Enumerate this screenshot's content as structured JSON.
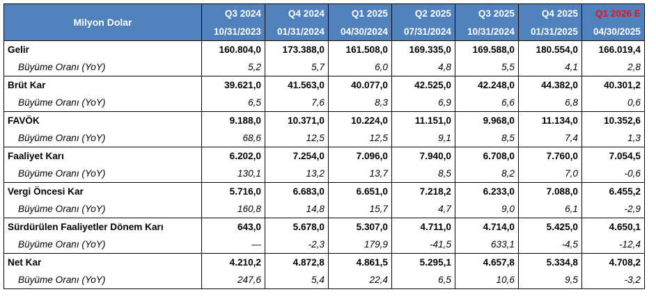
{
  "header": {
    "label": "Milyon Dolar",
    "quarters": [
      {
        "q": "Q3 2024",
        "date": "10/31/2023",
        "estimate": false
      },
      {
        "q": "Q4 2024",
        "date": "01/31/2024",
        "estimate": false
      },
      {
        "q": "Q1 2025",
        "date": "04/30/2024",
        "estimate": false
      },
      {
        "q": "Q2 2025",
        "date": "07/31/2024",
        "estimate": false
      },
      {
        "q": "Q3 2025",
        "date": "10/31/2024",
        "estimate": false
      },
      {
        "q": "Q4 2025",
        "date": "01/31/2025",
        "estimate": false
      },
      {
        "q": "Q1 2026 E",
        "date": "04/30/2025",
        "estimate": true
      }
    ]
  },
  "colors": {
    "header_bg": "#4f81bd",
    "estimate_text": "#e8121c"
  },
  "rows": [
    {
      "label": "Gelir",
      "values": [
        "160.804,0",
        "173.388,0",
        "161.508,0",
        "169.335,0",
        "169.588,0",
        "180.554,0",
        "166.019,4"
      ],
      "growth_label": "Büyüme Oranı (YoY)",
      "growth": [
        "5,2",
        "5,7",
        "6,0",
        "4,8",
        "5,5",
        "4,1",
        "2,8"
      ]
    },
    {
      "label": "Brüt Kar",
      "values": [
        "39.621,0",
        "41.563,0",
        "40.077,0",
        "42.525,0",
        "42.248,0",
        "44.382,0",
        "40.301,2"
      ],
      "growth_label": "Büyüme Oranı (YoY)",
      "growth": [
        "6,5",
        "7,6",
        "8,3",
        "6,9",
        "6,6",
        "6,8",
        "0,6"
      ]
    },
    {
      "label": "FAVÖK",
      "values": [
        "9.188,0",
        "10.371,0",
        "10.224,0",
        "11.151,0",
        "9.968,0",
        "11.134,0",
        "10.352,6"
      ],
      "growth_label": "Büyüme Oranı (YoY)",
      "growth": [
        "68,6",
        "12,5",
        "12,5",
        "9,1",
        "8,5",
        "7,4",
        "1,3"
      ]
    },
    {
      "label": "Faaliyet Karı",
      "values": [
        "6.202,0",
        "7.254,0",
        "7.096,0",
        "7.940,0",
        "6.708,0",
        "7.760,0",
        "7.054,5"
      ],
      "growth_label": "Büyüme Oranı (YoY)",
      "growth": [
        "130,1",
        "13,2",
        "13,7",
        "8,5",
        "8,2",
        "7,0",
        "-0,6"
      ]
    },
    {
      "label": "Vergi Öncesi Kar",
      "values": [
        "5.716,0",
        "6.683,0",
        "6.651,0",
        "7.218,2",
        "6.233,0",
        "7.088,0",
        "6.455,2"
      ],
      "growth_label": "Büyüme Oranı (YoY)",
      "growth": [
        "160,8",
        "14,8",
        "15,7",
        "4,7",
        "9,0",
        "6,1",
        "-2,9"
      ]
    },
    {
      "label": "Sürdürülen Faaliyetler Dönem Karı",
      "values": [
        "643,0",
        "5.678,0",
        "5.307,0",
        "4.711,0",
        "4.714,0",
        "5.425,0",
        "4.650,1"
      ],
      "growth_label": "Büyüme Oranı (YoY)",
      "growth": [
        "—",
        "-2,3",
        "179,9",
        "-41,5",
        "633,1",
        "-4,5",
        "-12,4"
      ]
    },
    {
      "label": "Net Kar",
      "values": [
        "4.210,2",
        "4.872,8",
        "4.861,5",
        "5.295,1",
        "4.657,8",
        "5.334,8",
        "4.708,2"
      ],
      "growth_label": "Büyüme Oranı (YoY)",
      "growth": [
        "247,6",
        "5,4",
        "22,4",
        "6,5",
        "10,6",
        "9,5",
        "-3,2"
      ]
    }
  ]
}
